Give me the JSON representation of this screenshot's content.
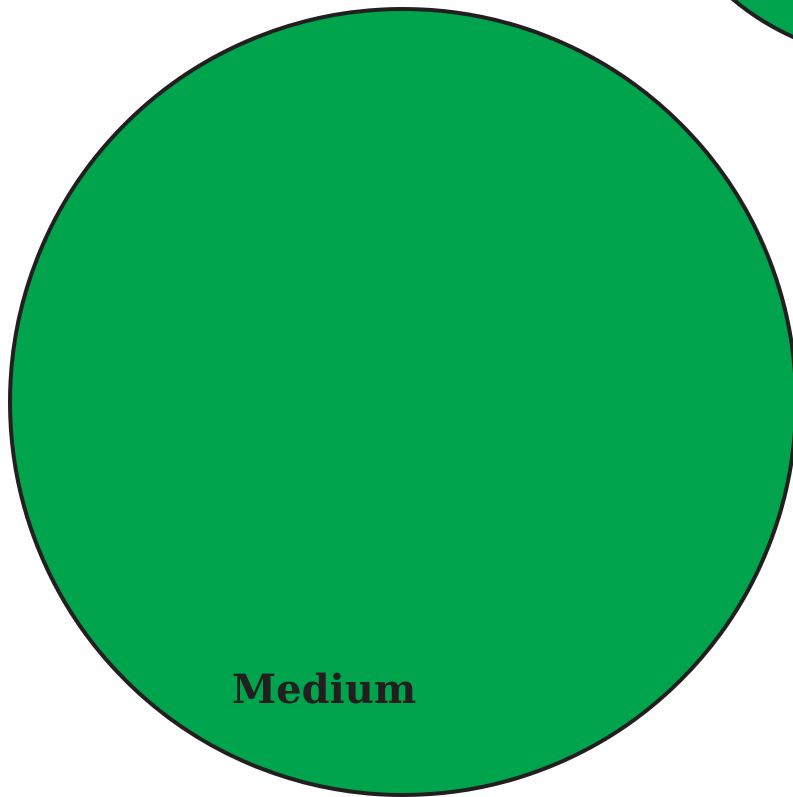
{
  "label": "Medium"
}
